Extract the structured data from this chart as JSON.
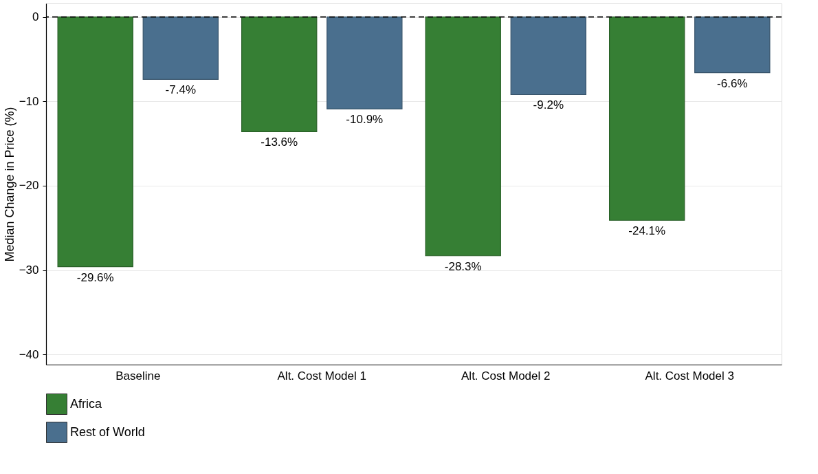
{
  "chart_data": {
    "type": "bar",
    "ylabel": "Median Change in Price (%)",
    "categories": [
      "Baseline",
      "Alt. Cost Model 1",
      "Alt. Cost Model 2",
      "Alt. Cost Model 3"
    ],
    "series": [
      {
        "name": "Africa",
        "color": "#367f34",
        "values": [
          -29.6,
          -13.6,
          -28.3,
          -24.1
        ],
        "value_labels": [
          "-29.6%",
          "-13.6%",
          "-28.3%",
          "-24.1%"
        ]
      },
      {
        "name": "Rest of World",
        "color": "#4a6f8e",
        "values": [
          -7.4,
          -10.9,
          -9.2,
          -6.6
        ],
        "value_labels": [
          "-7.4%",
          "-10.9%",
          "-9.2%",
          "-6.6%"
        ]
      }
    ],
    "ylim": [
      -41.2,
      1.6
    ],
    "yticks": [
      -40,
      -30,
      -20,
      -10,
      0
    ],
    "ref_lines": [
      {
        "axis": "y",
        "value": 0,
        "color": "#000000",
        "line_style": "dashed"
      }
    ],
    "grid": "y",
    "legend": "bottom"
  }
}
